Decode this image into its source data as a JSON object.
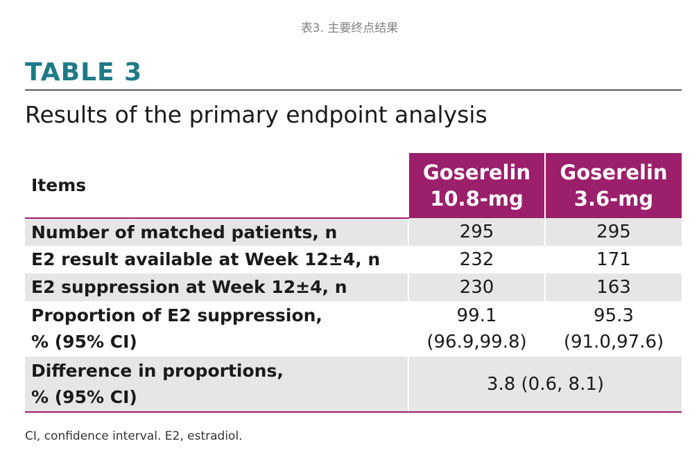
{
  "caption": "表3. 主要终点结果",
  "table_label": "TABLE 3",
  "subtitle": "Results of the primary endpoint analysis",
  "table": {
    "header": {
      "items": "Items",
      "col_a_line1": "Goserelin",
      "col_a_line2": "10.8-mg",
      "col_b_line1": "Goserelin",
      "col_b_line2": "3.6-mg"
    },
    "rows": [
      {
        "label": "Number of matched patients, n",
        "a": "295",
        "b": "295"
      },
      {
        "label": "E2 result available at Week 12±4, n",
        "a": "232",
        "b": "171"
      },
      {
        "label": "E2 suppression at Week 12±4, n",
        "a": "230",
        "b": "163"
      },
      {
        "label_line1": "Proportion of E2 suppression,",
        "label_line2": "% (95% CI)",
        "a_line1": "99.1",
        "a_line2": "(96.9,99.8)",
        "b_line1": "95.3",
        "b_line2": "(91.0,97.6)"
      },
      {
        "label_line1": "Difference in proportions,",
        "label_line2": "% (95% CI)",
        "merged": "3.8 (0.6, 8.1)"
      }
    ]
  },
  "footnote": "CI, confidence interval. E2, estradiol.",
  "colors": {
    "accent_teal": "#1f7a86",
    "header_magenta": "#9b1f6b",
    "row_shade": "#e6e6e6"
  }
}
